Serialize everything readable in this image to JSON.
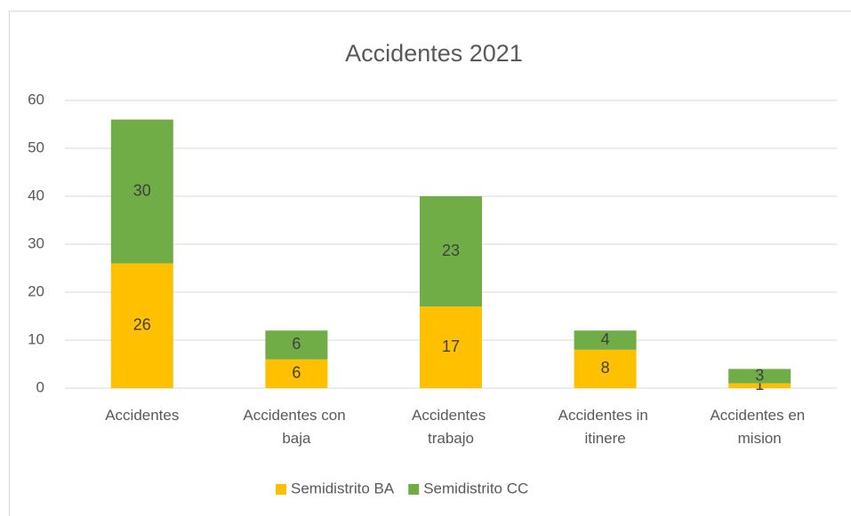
{
  "chart_data": {
    "type": "bar",
    "stacked": true,
    "title": "Accidentes 2021",
    "categories": [
      "Accidentes",
      "Accidentes con baja",
      "Accidentes trabajo",
      "Accidentes in itinere",
      "Accidentes en mision"
    ],
    "series": [
      {
        "name": "Semidistrito BA",
        "color": "#ffc000",
        "values": [
          26,
          6,
          17,
          8,
          1
        ]
      },
      {
        "name": "Semidistrito CC",
        "color": "#70ad47",
        "values": [
          30,
          6,
          23,
          4,
          3
        ]
      }
    ],
    "ylim": [
      0,
      60
    ],
    "yticks": [
      0,
      10,
      20,
      30,
      40,
      50,
      60
    ],
    "grid": true,
    "legend": "bottom"
  }
}
